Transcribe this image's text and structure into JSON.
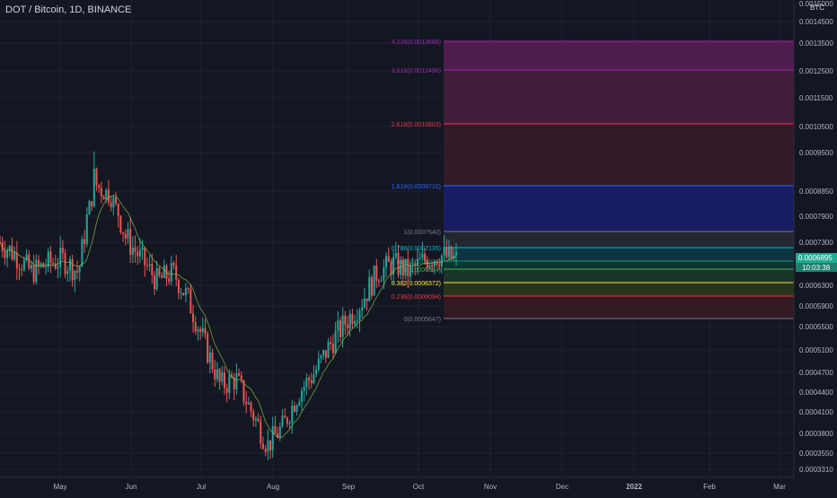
{
  "header": {
    "title": "DOT / Bitcoin, 1D, BINANCE"
  },
  "price_axis": {
    "unit": "BTC",
    "ticks": [
      "0.0015000",
      "0.0014500",
      "0.0013500",
      "0.0012500",
      "0.0011500",
      "0.0010500",
      "0.0009500",
      "0.0008850",
      "0.0007900",
      "0.0007300",
      "0.0006300",
      "0.0005900",
      "0.0005500",
      "0.0005100",
      "0.0004700",
      "0.0004400",
      "0.0004100",
      "0.0003800",
      "0.0003550",
      "0.0003310"
    ],
    "current_price": "0.0006895",
    "countdown": "10:03:38"
  },
  "time_axis": {
    "ticks": [
      "May",
      "Jun",
      "Jul",
      "Aug",
      "Sep",
      "Oct",
      "Nov",
      "Dec",
      "2022",
      "Feb",
      "Mar"
    ]
  },
  "fibonacci": {
    "levels": [
      {
        "label": "4.236(0.0013666)",
        "ratio": 4.236,
        "price": 0.0013666,
        "color": "#9c27b0",
        "fill": "#5b1f55"
      },
      {
        "label": "3.618(0.0012496)",
        "ratio": 3.618,
        "price": 0.0012496,
        "color": "#9c27b0",
        "fill": "#4a1f3f"
      },
      {
        "label": "2.618(0.0010603)",
        "ratio": 2.618,
        "price": 0.0010603,
        "color": "#f23645",
        "fill": "#3b1a2a"
      },
      {
        "label": "1.618(0.0008710)",
        "ratio": 1.618,
        "price": 0.000871,
        "color": "#2962ff",
        "fill": "#1a1f6e"
      },
      {
        "label": "1(0.0007540)",
        "ratio": 1,
        "price": 0.000754,
        "color": "#787b86",
        "fill": "#272a33"
      },
      {
        "label": "0.786(0.0007135)",
        "ratio": 0.786,
        "price": 0.0007135,
        "color": "#00bcd4",
        "fill": "#0f3a44"
      },
      {
        "label": "0.618(0.0006817)",
        "ratio": 0.618,
        "price": 0.0006817,
        "color": "#089981",
        "fill": "#0b3b36"
      },
      {
        "label": "0.5(0.0006594)",
        "ratio": 0.5,
        "price": 0.0006594,
        "color": "#4caf50",
        "fill": "#1b3b26"
      },
      {
        "label": "0.382(0.0006372)",
        "ratio": 0.382,
        "price": 0.0006372,
        "color": "#ffeb3b",
        "fill": "#2f3a1a"
      },
      {
        "label": "0.236(0.0006094)",
        "ratio": 0.236,
        "price": 0.0006094,
        "color": "#f23645",
        "fill": "#3a1a22"
      },
      {
        "label": "0(0.0005647)",
        "ratio": 0,
        "price": 0.0005647,
        "color": "#787b86",
        "fill": "#131722"
      }
    ]
  },
  "chart_data": {
    "type": "candlestick",
    "title": "DOT / Bitcoin, 1D, BINANCE",
    "y_unit": "BTC",
    "series_hint": "daily candles Apr–Oct 2021 with moving average",
    "close_path": [
      [
        "2021-04-08",
        0.00073
      ],
      [
        "2021-04-15",
        0.0007
      ],
      [
        "2021-04-22",
        0.00066
      ],
      [
        "2021-04-29",
        0.00068
      ],
      [
        "2021-05-06",
        0.00069
      ],
      [
        "2021-05-13",
        0.00066
      ],
      [
        "2021-05-17",
        0.0009
      ],
      [
        "2021-05-20",
        0.00087
      ],
      [
        "2021-05-25",
        0.00074
      ],
      [
        "2021-06-01",
        0.00069
      ],
      [
        "2021-06-08",
        0.00064
      ],
      [
        "2021-06-15",
        0.00066
      ],
      [
        "2021-06-22",
        0.0006
      ],
      [
        "2021-06-29",
        0.00052
      ],
      [
        "2021-07-06",
        0.00045
      ],
      [
        "2021-07-13",
        0.00046
      ],
      [
        "2021-07-20",
        0.00041
      ],
      [
        "2021-07-27",
        0.000365
      ],
      [
        "2021-08-03",
        0.00039
      ],
      [
        "2021-08-10",
        0.00044
      ],
      [
        "2021-08-17",
        0.00047
      ],
      [
        "2021-08-24",
        0.00052
      ],
      [
        "2021-08-31",
        0.00056
      ],
      [
        "2021-09-07",
        0.0006
      ],
      [
        "2021-09-14",
        0.00066
      ],
      [
        "2021-09-21",
        0.00068
      ],
      [
        "2021-09-28",
        0.00066
      ],
      [
        "2021-10-05",
        0.00069
      ],
      [
        "2021-10-11",
        0.0007
      ],
      [
        "2021-10-15",
        0.00069
      ]
    ],
    "ylim": [
      0.000331,
      0.0015
    ]
  }
}
